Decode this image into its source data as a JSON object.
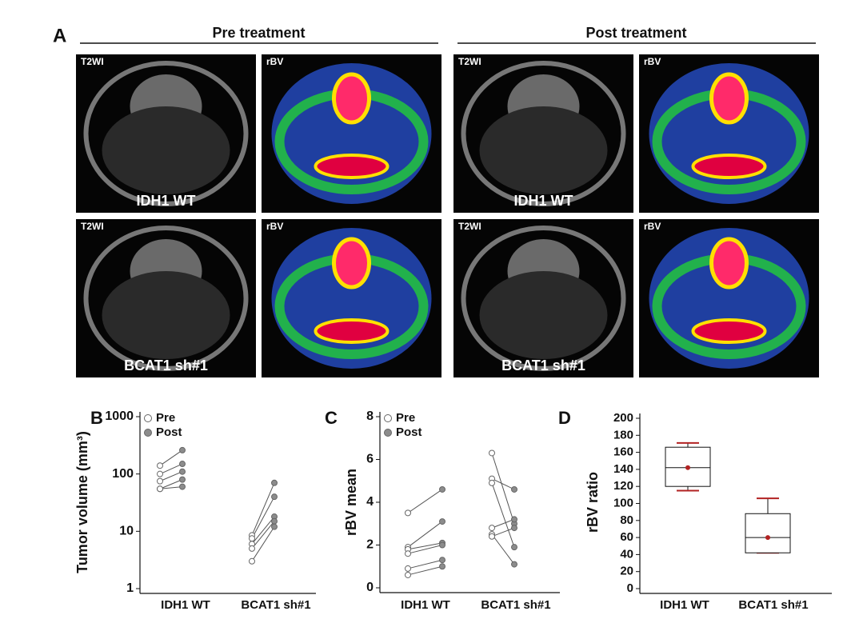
{
  "figure_a": {
    "label": "A",
    "panels": [
      {
        "title": "Pre treatment",
        "columns": [
          "T2WI",
          "rBV"
        ],
        "rows": [
          "IDH1 WT",
          "BCAT1 sh#1"
        ]
      },
      {
        "title": "Post treatment",
        "columns": [
          "T2WI",
          "rBV"
        ],
        "rows": [
          "IDH1 WT",
          "BCAT1 sh#1"
        ]
      }
    ]
  },
  "chart_data": [
    {
      "type": "paired",
      "label": "B",
      "y_label": "Tumor volume (mm³)",
      "log_scale": true,
      "categories": [
        "IDH1 WT",
        "BCAT1 sh#1"
      ],
      "series": [
        {
          "name": "Pre",
          "color": "#ffffff",
          "values": [
            [
              140,
              100,
              75,
              55,
              55
            ],
            [
              8.5,
              7.5,
              6,
              5,
              3
            ]
          ]
        },
        {
          "name": "Post",
          "color": "#8c8c8c",
          "values": [
            [
              260,
              150,
              110,
              80,
              60
            ],
            [
              70,
              40,
              18,
              15,
              12
            ]
          ]
        }
      ],
      "ylim": [
        1,
        1000
      ],
      "yticks": [
        1,
        10,
        100,
        1000
      ]
    },
    {
      "type": "paired",
      "label": "C",
      "y_label": "rBV mean",
      "log_scale": false,
      "categories": [
        "IDH1 WT",
        "BCAT1 sh#1"
      ],
      "series": [
        {
          "name": "Pre",
          "color": "#ffffff",
          "values": [
            [
              3.5,
              1.9,
              1.8,
              1.6,
              0.9,
              0.6
            ],
            [
              6.3,
              5.1,
              4.9,
              2.8,
              2.5,
              2.4
            ]
          ]
        },
        {
          "name": "Post",
          "color": "#8c8c8c",
          "values": [
            [
              4.6,
              3.1,
              2.1,
              2.0,
              1.3,
              1.0
            ],
            [
              3.0,
              4.6,
              1.9,
              3.2,
              1.1,
              2.8
            ]
          ]
        }
      ],
      "ylim": [
        0,
        8
      ],
      "yticks": [
        0,
        2,
        4,
        6,
        8
      ]
    },
    {
      "type": "box",
      "label": "D",
      "y_label": "rBV ratio",
      "log_scale": false,
      "categories": [
        "IDH1 WT",
        "BCAT1 sh#1"
      ],
      "boxes": [
        {
          "min": 115,
          "q1": 120,
          "median": 142,
          "q3": 166,
          "max": 171,
          "mean": 142
        },
        {
          "min": 42,
          "q1": 42,
          "median": 60,
          "q3": 88,
          "max": 106,
          "mean": 60
        }
      ],
      "color": "#b22222",
      "ylim": [
        0,
        200
      ],
      "yticks": [
        0,
        20,
        40,
        60,
        80,
        100,
        120,
        140,
        160,
        180,
        200
      ]
    }
  ]
}
